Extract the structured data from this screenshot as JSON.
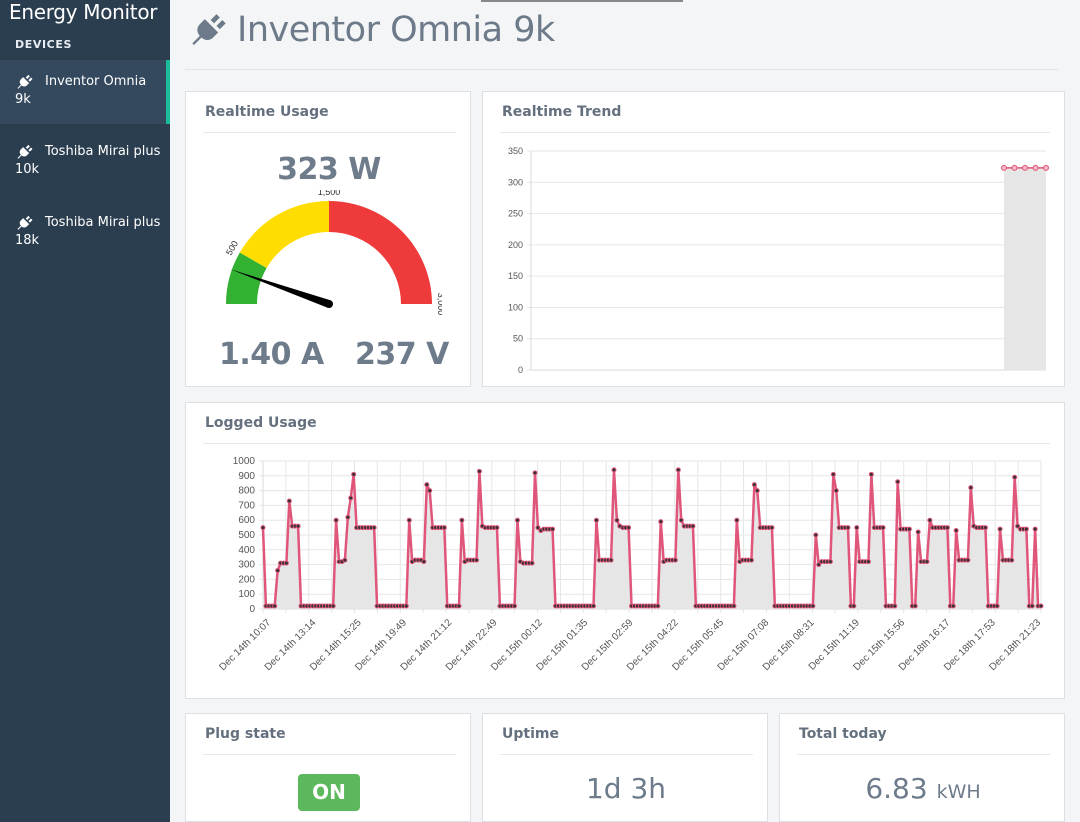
{
  "app": {
    "title": "Energy Monitor"
  },
  "sidebar": {
    "heading": "DEVICES",
    "items": [
      {
        "label": "Inventor Omnia 9k",
        "icon": "plug-icon",
        "active": true
      },
      {
        "label": "Toshiba Mirai plus 10k",
        "icon": "plug-icon",
        "active": false
      },
      {
        "label": "Toshiba Mirai plus 18k",
        "icon": "plug-icon",
        "active": false
      }
    ]
  },
  "header": {
    "title": "Inventor Omnia 9k",
    "icon": "plug-icon"
  },
  "realtime": {
    "title": "Realtime Usage",
    "power": "323 W",
    "current": "1.40 A",
    "voltage": "237 V",
    "gauge": {
      "min": 0,
      "max": 3000,
      "value": 323,
      "bands": [
        {
          "from": 0,
          "to": 500,
          "color": "#33b133"
        },
        {
          "from": 500,
          "to": 1500,
          "color": "#ffdd00"
        },
        {
          "from": 1500,
          "to": 3000,
          "color": "#ee3a3a"
        }
      ],
      "tick_labels": [
        "500",
        "1,500",
        "3,000"
      ]
    }
  },
  "trend": {
    "title": "Realtime Trend"
  },
  "logged": {
    "title": "Logged Usage"
  },
  "plug_state": {
    "title": "Plug state",
    "value": "ON"
  },
  "uptime": {
    "title": "Uptime",
    "value": "1d 3h"
  },
  "total_today": {
    "title": "Total today",
    "value": "6.83",
    "unit": "kWH"
  },
  "colors": {
    "line": "#e0557a",
    "fill": "#e6e6e6",
    "sidebar": "#2b3e50",
    "accent": "#1abc9c"
  },
  "chart_data": [
    {
      "type": "area",
      "title": "Realtime Trend",
      "y_ticks": [
        "0",
        "50",
        "100",
        "150",
        "200",
        "250",
        "300",
        "350"
      ],
      "ylim": [
        0,
        350
      ],
      "x_count": 50,
      "series": [
        {
          "values": [
            null,
            null,
            null,
            null,
            null,
            null,
            null,
            null,
            null,
            null,
            null,
            null,
            null,
            null,
            null,
            null,
            null,
            null,
            null,
            null,
            null,
            null,
            null,
            null,
            null,
            null,
            null,
            null,
            null,
            null,
            null,
            null,
            null,
            null,
            null,
            null,
            null,
            null,
            null,
            null,
            null,
            null,
            null,
            null,
            null,
            323,
            323,
            323,
            323,
            323
          ]
        }
      ]
    },
    {
      "type": "area",
      "title": "Logged Usage",
      "ylim": [
        0,
        1000
      ],
      "y_ticks": [
        "0",
        "100",
        "200",
        "300",
        "400",
        "500",
        "600",
        "700",
        "800",
        "900",
        "1000"
      ],
      "x_labels": [
        "Dec 14th 10:07",
        "Dec 14th 13:14",
        "Dec 14th 15:25",
        "Dec 14th 19:49",
        "Dec 14th 21:12",
        "Dec 14th 22:49",
        "Dec 15th 00:12",
        "Dec 15th 01:35",
        "Dec 15th 02:59",
        "Dec 15th 04:22",
        "Dec 15th 05:45",
        "Dec 15th 07:08",
        "Dec 15th 08:31",
        "Dec 15th 11:19",
        "Dec 15th 15:56",
        "Dec 18th 16:17",
        "Dec 18th 17:53",
        "Dec 18th 21:23"
      ],
      "series": [
        {
          "values": [
            550,
            20,
            20,
            20,
            20,
            260,
            310,
            310,
            310,
            730,
            560,
            560,
            560,
            20,
            20,
            20,
            20,
            20,
            20,
            20,
            20,
            20,
            20,
            20,
            20,
            600,
            320,
            320,
            330,
            620,
            750,
            910,
            550,
            550,
            550,
            550,
            550,
            550,
            550,
            20,
            20,
            20,
            20,
            20,
            20,
            20,
            20,
            20,
            20,
            20,
            600,
            320,
            330,
            330,
            330,
            320,
            840,
            800,
            550,
            550,
            550,
            550,
            550,
            20,
            20,
            20,
            20,
            20,
            600,
            320,
            330,
            330,
            330,
            330,
            930,
            560,
            550,
            550,
            550,
            550,
            550,
            20,
            20,
            20,
            20,
            20,
            20,
            600,
            320,
            310,
            310,
            310,
            310,
            920,
            550,
            530,
            540,
            540,
            540,
            540,
            20,
            20,
            20,
            20,
            20,
            20,
            20,
            20,
            20,
            20,
            20,
            20,
            20,
            20,
            600,
            330,
            330,
            330,
            330,
            330,
            940,
            600,
            560,
            550,
            550,
            550,
            20,
            20,
            20,
            20,
            20,
            20,
            20,
            20,
            20,
            20,
            590,
            320,
            330,
            330,
            330,
            330,
            940,
            600,
            560,
            560,
            560,
            560,
            20,
            20,
            20,
            20,
            20,
            20,
            20,
            20,
            20,
            20,
            20,
            20,
            20,
            20,
            600,
            320,
            330,
            330,
            330,
            330,
            840,
            800,
            550,
            550,
            550,
            550,
            550,
            20,
            20,
            20,
            20,
            20,
            20,
            20,
            20,
            20,
            20,
            20,
            20,
            20,
            20,
            500,
            300,
            320,
            320,
            320,
            320,
            910,
            800,
            550,
            550,
            550,
            550,
            20,
            20,
            550,
            320,
            320,
            320,
            320,
            910,
            550,
            550,
            550,
            550,
            20,
            20,
            20,
            20,
            860,
            540,
            540,
            540,
            540,
            20,
            20,
            520,
            320,
            320,
            320,
            600,
            550,
            550,
            550,
            550,
            550,
            550,
            20,
            20,
            530,
            330,
            330,
            330,
            330,
            820,
            560,
            550,
            550,
            550,
            550,
            20,
            20,
            20,
            20,
            540,
            330,
            330,
            330,
            330,
            890,
            560,
            540,
            540,
            540,
            20,
            20,
            540,
            20,
            20
          ]
        }
      ]
    }
  ]
}
